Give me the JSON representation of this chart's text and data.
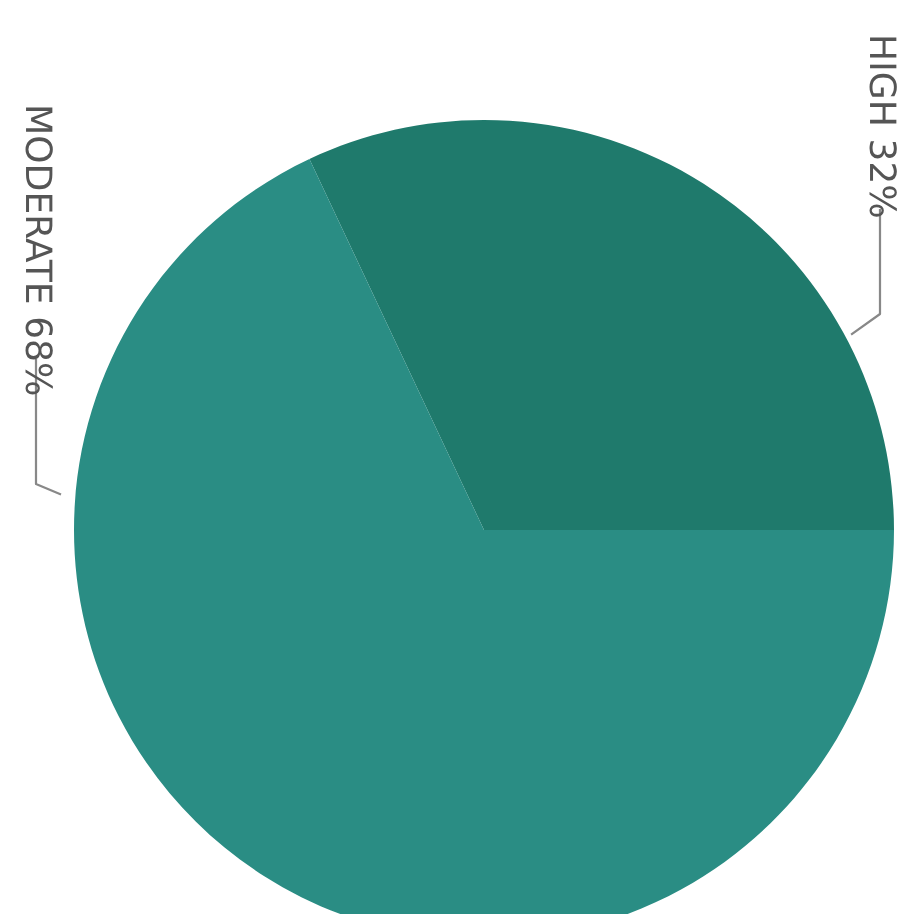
{
  "chart_data": {
    "type": "pie",
    "categories": [
      "HIGH",
      "MODERATE"
    ],
    "values": [
      32,
      68
    ],
    "value_labels": [
      "32%",
      "68%"
    ],
    "colors": [
      "#1f7a6c",
      "#2a8d84"
    ]
  }
}
